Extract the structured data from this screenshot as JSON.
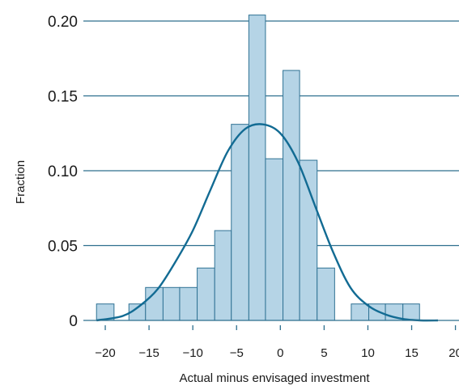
{
  "chart_data": {
    "type": "bar",
    "xlabel": "Actual minus envisaged investment",
    "ylabel": "Fraction",
    "xlim": [
      -22.5,
      20.5
    ],
    "ylim": [
      0,
      0.21
    ],
    "grid": true,
    "y_ticks": [
      {
        "value": 0,
        "label": "0"
      },
      {
        "value": 0.05,
        "label": "0.05"
      },
      {
        "value": 0.1,
        "label": "0.10"
      },
      {
        "value": 0.15,
        "label": "0.15"
      },
      {
        "value": 0.2,
        "label": "0.20"
      }
    ],
    "x_ticks": [
      {
        "value": -20,
        "label": "−20"
      },
      {
        "value": -15,
        "label": "−15"
      },
      {
        "value": -10,
        "label": "−10"
      },
      {
        "value": -5,
        "label": "−5"
      },
      {
        "value": 0,
        "label": "0"
      },
      {
        "value": 5,
        "label": "5"
      },
      {
        "value": 10,
        "label": "10"
      },
      {
        "value": 15,
        "label": "15"
      },
      {
        "value": 20,
        "label": "20"
      }
    ],
    "bins": [
      {
        "x0": -21.0,
        "x1": -19.0,
        "value": 0.011
      },
      {
        "x0": -17.3,
        "x1": -15.4,
        "value": 0.011
      },
      {
        "x0": -15.4,
        "x1": -13.4,
        "value": 0.022
      },
      {
        "x0": -13.4,
        "x1": -11.5,
        "value": 0.022
      },
      {
        "x0": -11.5,
        "x1": -9.5,
        "value": 0.022
      },
      {
        "x0": -9.5,
        "x1": -7.5,
        "value": 0.035
      },
      {
        "x0": -7.5,
        "x1": -5.6,
        "value": 0.06
      },
      {
        "x0": -5.6,
        "x1": -3.6,
        "value": 0.131
      },
      {
        "x0": -3.6,
        "x1": -1.7,
        "value": 0.204
      },
      {
        "x0": -1.7,
        "x1": 0.3,
        "value": 0.108
      },
      {
        "x0": 0.3,
        "x1": 2.2,
        "value": 0.167
      },
      {
        "x0": 2.2,
        "x1": 4.2,
        "value": 0.107
      },
      {
        "x0": 4.2,
        "x1": 6.2,
        "value": 0.035
      },
      {
        "x0": 8.1,
        "x1": 10.1,
        "value": 0.011
      },
      {
        "x0": 10.1,
        "x1": 12.0,
        "value": 0.011
      },
      {
        "x0": 12.0,
        "x1": 14.0,
        "value": 0.011
      },
      {
        "x0": 14.0,
        "x1": 15.9,
        "value": 0.011
      }
    ],
    "curve": {
      "name": "Density",
      "points": [
        [
          -21,
          0.0
        ],
        [
          -18,
          0.003
        ],
        [
          -16,
          0.01
        ],
        [
          -14,
          0.021
        ],
        [
          -12,
          0.039
        ],
        [
          -10,
          0.06
        ],
        [
          -8,
          0.087
        ],
        [
          -6,
          0.113
        ],
        [
          -4,
          0.128
        ],
        [
          -2,
          0.131
        ],
        [
          0,
          0.125
        ],
        [
          2,
          0.106
        ],
        [
          4,
          0.076
        ],
        [
          6,
          0.046
        ],
        [
          8,
          0.022
        ],
        [
          10,
          0.01
        ],
        [
          12,
          0.004
        ],
        [
          14,
          0.001
        ],
        [
          16,
          0.0
        ],
        [
          18,
          0.0
        ]
      ]
    }
  }
}
